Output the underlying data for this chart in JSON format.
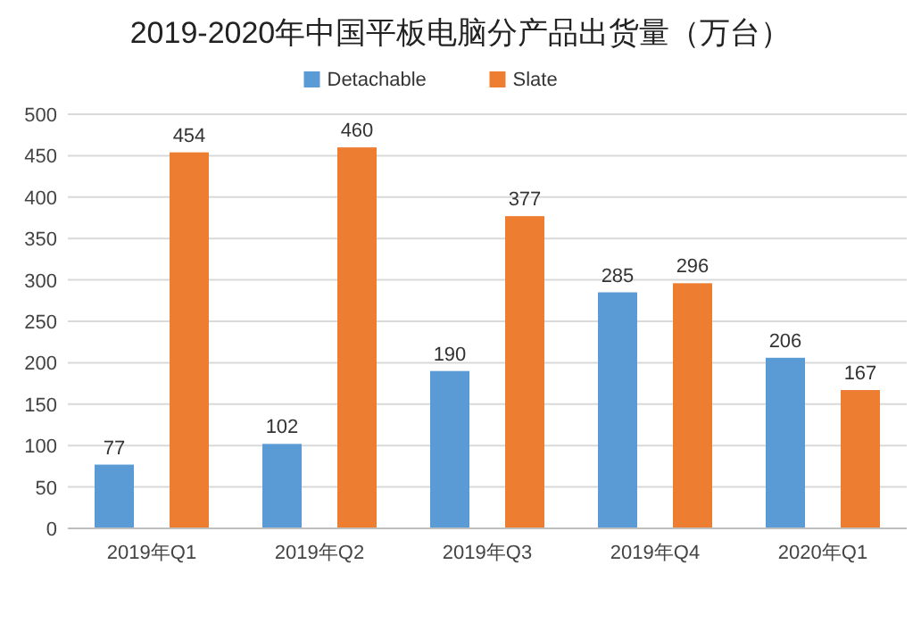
{
  "chart_data": {
    "type": "bar",
    "title": "2019-2020年中国平板电脑分产品出货量（万台）",
    "categories": [
      "2019年Q1",
      "2019年Q2",
      "2019年Q3",
      "2019年Q4",
      "2020年Q1"
    ],
    "series": [
      {
        "name": "Detachable",
        "color": "#5b9bd5",
        "values": [
          77,
          102,
          190,
          285,
          206
        ]
      },
      {
        "name": "Slate",
        "color": "#ed7d31",
        "values": [
          454,
          460,
          377,
          296,
          167
        ]
      }
    ],
    "ylim": [
      0,
      500
    ],
    "yticks": [
      0,
      50,
      100,
      150,
      200,
      250,
      300,
      350,
      400,
      450,
      500
    ],
    "grid": "y",
    "legend": "top",
    "data_labels": true
  }
}
